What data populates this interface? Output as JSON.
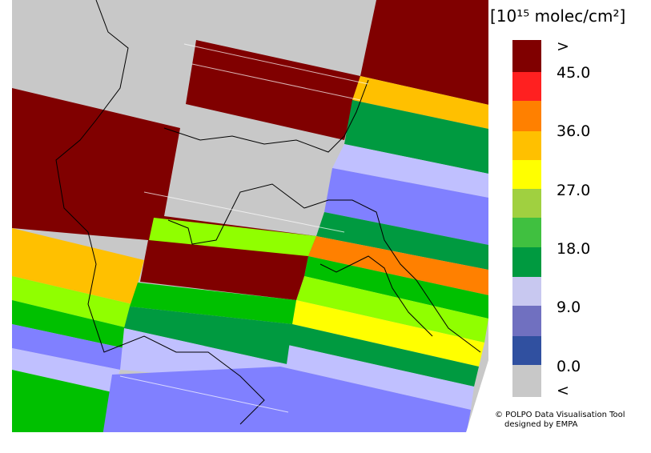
{
  "legend": {
    "title": "[10¹⁵ molec/cm²]",
    "labels": [
      ">",
      "45.0",
      "36.0",
      "27.0",
      "18.0",
      "9.0",
      "0.0",
      "<"
    ]
  },
  "credit": [
    "© POLPO Data Visualisation Tool",
    "designed by EMPA"
  ]
}
